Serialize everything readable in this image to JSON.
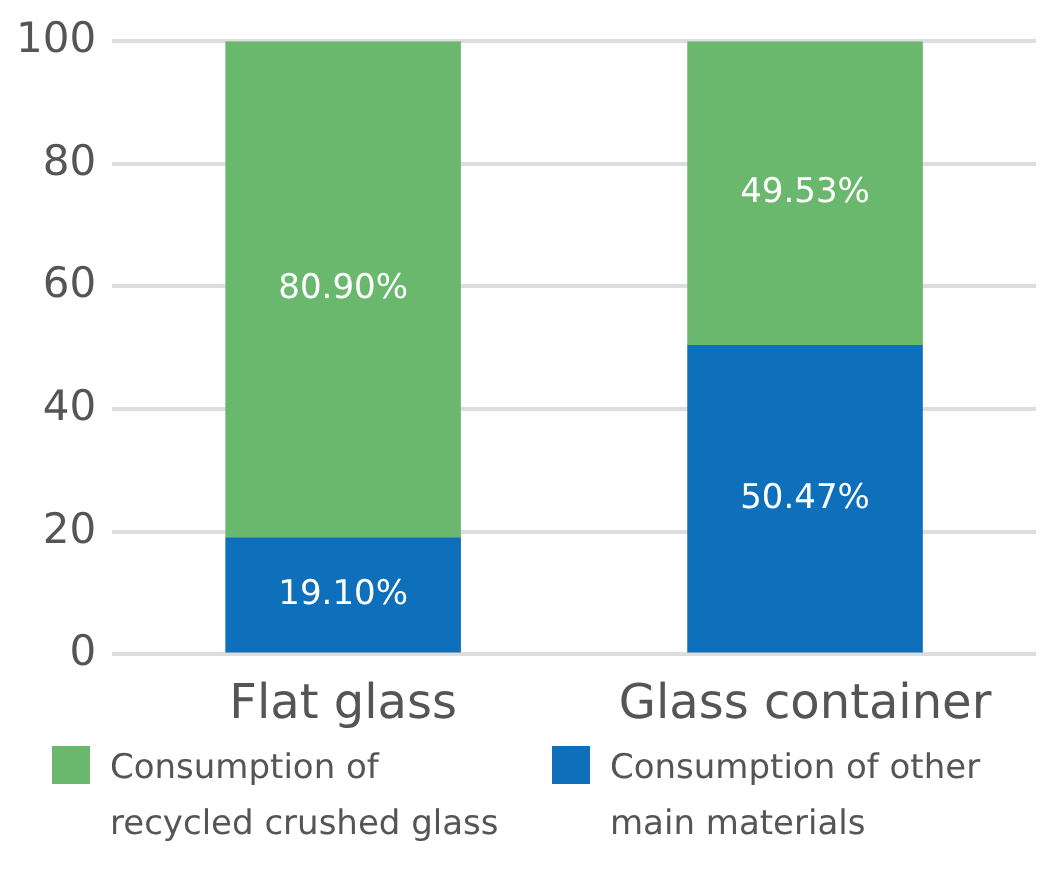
{
  "chart_data": {
    "type": "bar",
    "stacked": true,
    "categories": [
      "Flat glass",
      "Glass container"
    ],
    "series": [
      {
        "name": "Consumption of other main materials",
        "color": "#0e6fba",
        "values": [
          19.1,
          50.47
        ],
        "value_labels": [
          "19.10%",
          "50.47%"
        ]
      },
      {
        "name": "Consumption of recycled crushed glass",
        "color": "#6ab86d",
        "values": [
          80.9,
          49.53
        ],
        "value_labels": [
          "80.90%",
          "49.53%"
        ]
      }
    ],
    "ylim": [
      0,
      100
    ],
    "yticks": [
      0,
      20,
      40,
      60,
      80,
      100
    ],
    "grid": "y",
    "legend": "bottom"
  }
}
